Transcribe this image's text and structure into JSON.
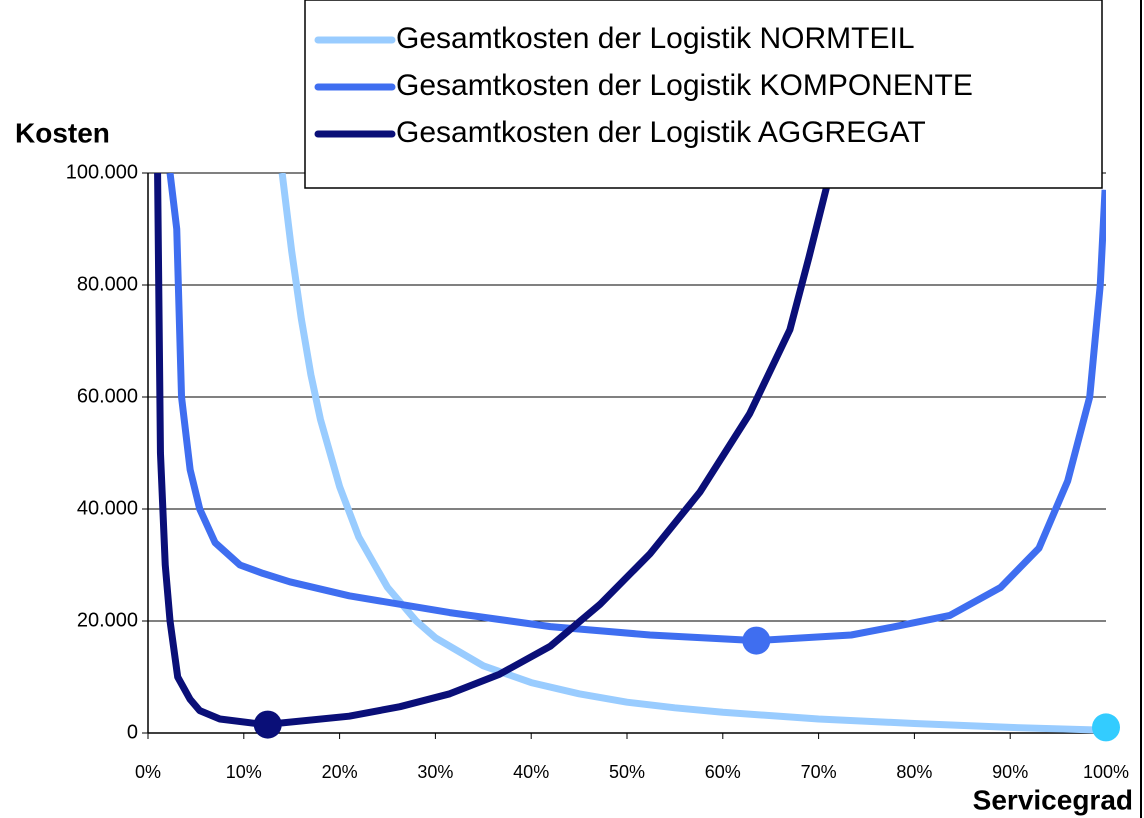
{
  "chart_data": {
    "type": "line",
    "ylabel": "Kosten",
    "xlabel": "Servicegrad",
    "xlim": [
      0,
      100
    ],
    "xticks": [
      {
        "value": 0,
        "label": "0%"
      },
      {
        "value": 10,
        "label": "10%"
      },
      {
        "value": 20,
        "label": "20%"
      },
      {
        "value": 30,
        "label": "30%"
      },
      {
        "value": 40,
        "label": "40%"
      },
      {
        "value": 50,
        "label": "50%"
      },
      {
        "value": 60,
        "label": "60%"
      },
      {
        "value": 70,
        "label": "70%"
      },
      {
        "value": 80,
        "label": "80%"
      },
      {
        "value": 90,
        "label": "90%"
      },
      {
        "value": 100,
        "label": "100%"
      }
    ],
    "ylim": [
      0,
      100000
    ],
    "yticks": [
      0,
      {
        "value": 20000,
        "label": "20.000"
      },
      {
        "value": 40000,
        "label": "40.000"
      },
      {
        "value": 60000,
        "label": "60.000"
      },
      {
        "value": 80000,
        "label": "80.000"
      },
      {
        "value": 100000,
        "label": "100.000"
      }
    ],
    "grid": true,
    "legend": "top-right",
    "series": [
      {
        "name": "Gesamtkosten der Logistik NORMTEIL",
        "color": "#99ccff",
        "x": [
          14,
          15,
          16,
          17,
          18,
          20,
          22,
          25,
          28,
          30,
          35,
          40,
          45,
          50,
          55,
          60,
          70,
          80,
          90,
          100
        ],
        "values": [
          100000,
          86000,
          74000,
          64000,
          56000,
          44000,
          35000,
          26000,
          20000,
          17000,
          12000,
          9000,
          7000,
          5500,
          4500,
          3700,
          2500,
          1700,
          1000,
          500
        ]
      },
      {
        "name": "Gesamtkosten der Logistik KOMPONENTE",
        "color": "#3f6ef0",
        "x": [
          2.3,
          3,
          3.5,
          4.4,
          5.4,
          7,
          9.6,
          12,
          14.8,
          21,
          31.5,
          42,
          52.4,
          63.5,
          73.4,
          78,
          83.7,
          89,
          93,
          96,
          98.3,
          99.4,
          99.9
        ],
        "values": [
          100000,
          90000,
          60000,
          47000,
          40000,
          34000,
          30000,
          28500,
          27000,
          24500,
          21500,
          19000,
          17500,
          16500,
          17500,
          19000,
          21000,
          26000,
          33000,
          45000,
          60000,
          80000,
          97000
        ]
      },
      {
        "name": "Gesamtkosten der Logistik AGGREGAT",
        "color": "#0a0f78",
        "x": [
          1,
          1.3,
          1.8,
          2.3,
          3.1,
          4.4,
          5.4,
          7.5,
          12.2,
          21,
          26.3,
          31.5,
          36.7,
          42,
          47.2,
          52.4,
          57.6,
          62.8,
          67,
          69,
          71.2
        ],
        "values": [
          100000,
          50000,
          30000,
          20000,
          10000,
          6000,
          4000,
          2500,
          1500,
          3000,
          4700,
          7000,
          10500,
          15500,
          23000,
          32000,
          43000,
          57000,
          72000,
          85000,
          100000
        ]
      }
    ],
    "markers": [
      {
        "x": 12.5,
        "y": 1500,
        "color": "#0a0f78"
      },
      {
        "x": 63.5,
        "y": 16500,
        "color": "#3f6ef0"
      },
      {
        "x": 100,
        "y": 1000,
        "color": "#33ccff"
      }
    ]
  }
}
